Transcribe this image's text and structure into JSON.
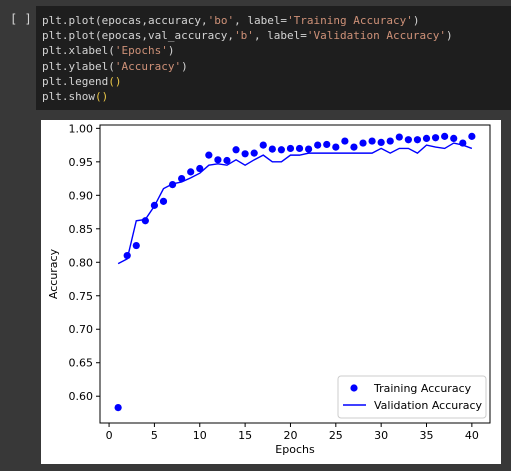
{
  "cell": {
    "run_indicator": "[ ]",
    "code_lines": [
      [
        {
          "t": "plt.plot(epocas,accuracy,",
          "c": "plain"
        },
        {
          "t": "'bo'",
          "c": "str"
        },
        {
          "t": ", label=",
          "c": "plain"
        },
        {
          "t": "'Training Accuracy'",
          "c": "str"
        },
        {
          "t": ")",
          "c": "plain"
        }
      ],
      [
        {
          "t": "plt.plot(epocas,val_accuracy,",
          "c": "plain"
        },
        {
          "t": "'b'",
          "c": "str"
        },
        {
          "t": ", label=",
          "c": "plain"
        },
        {
          "t": "'Validation Accuracy'",
          "c": "str"
        },
        {
          "t": ")",
          "c": "plain"
        }
      ],
      [
        {
          "t": "plt.xlabel(",
          "c": "plain"
        },
        {
          "t": "'Epochs'",
          "c": "str"
        },
        {
          "t": ")",
          "c": "plain"
        }
      ],
      [
        {
          "t": "plt.ylabel(",
          "c": "plain"
        },
        {
          "t": "'Accuracy'",
          "c": "str"
        },
        {
          "t": ")",
          "c": "plain"
        }
      ],
      [
        {
          "t": "plt.legend",
          "c": "plain"
        },
        {
          "t": "()",
          "c": "paren"
        }
      ],
      [
        {
          "t": "plt.show",
          "c": "plain"
        },
        {
          "t": "()",
          "c": "paren"
        }
      ]
    ]
  },
  "chart_data": {
    "type": "line",
    "title": "",
    "xlabel": "Epochs",
    "ylabel": "Accuracy",
    "xlim": [
      -1,
      42
    ],
    "ylim": [
      0.56,
      1.005
    ],
    "x_ticks": [
      0,
      5,
      10,
      15,
      20,
      25,
      30,
      35,
      40
    ],
    "y_ticks": [
      0.6,
      0.65,
      0.7,
      0.75,
      0.8,
      0.85,
      0.9,
      0.95,
      1.0
    ],
    "y_tick_labels": [
      "0.60",
      "0.65",
      "0.70",
      "0.75",
      "0.80",
      "0.85",
      "0.90",
      "0.95",
      "1.00"
    ],
    "grid": false,
    "legend_position": "lower-right",
    "color": "#0000ff",
    "x": [
      1,
      2,
      3,
      4,
      5,
      6,
      7,
      8,
      9,
      10,
      11,
      12,
      13,
      14,
      15,
      16,
      17,
      18,
      19,
      20,
      21,
      22,
      23,
      24,
      25,
      26,
      27,
      28,
      29,
      30,
      31,
      32,
      33,
      34,
      35,
      36,
      37,
      38,
      39,
      40
    ],
    "series": [
      {
        "name": "Training Accuracy",
        "style": "markers",
        "values": [
          0.583,
          0.81,
          0.825,
          0.862,
          0.885,
          0.891,
          0.916,
          0.925,
          0.935,
          0.94,
          0.96,
          0.953,
          0.952,
          0.968,
          0.962,
          0.963,
          0.975,
          0.969,
          0.968,
          0.97,
          0.97,
          0.969,
          0.975,
          0.976,
          0.972,
          0.981,
          0.972,
          0.978,
          0.981,
          0.979,
          0.981,
          0.987,
          0.983,
          0.983,
          0.985,
          0.986,
          0.988,
          0.985,
          0.978,
          0.988
        ]
      },
      {
        "name": "Validation Accuracy",
        "style": "line",
        "values": [
          0.798,
          0.805,
          0.862,
          0.864,
          0.884,
          0.91,
          0.917,
          0.92,
          0.926,
          0.933,
          0.945,
          0.947,
          0.945,
          0.953,
          0.945,
          0.953,
          0.96,
          0.95,
          0.95,
          0.96,
          0.96,
          0.963,
          0.963,
          0.963,
          0.963,
          0.963,
          0.963,
          0.963,
          0.963,
          0.97,
          0.963,
          0.97,
          0.97,
          0.963,
          0.975,
          0.972,
          0.97,
          0.978,
          0.975,
          0.97
        ]
      }
    ]
  }
}
